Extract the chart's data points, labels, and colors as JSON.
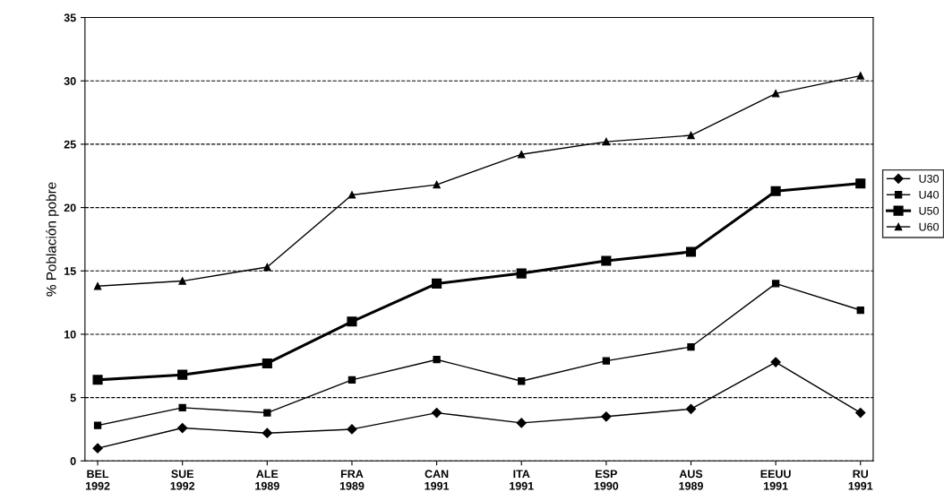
{
  "chart_data": {
    "type": "line",
    "ylabel": "% Población pobre",
    "categories": [
      "BEL\n1992",
      "SUE\n1992",
      "ALE\n1989",
      "FRA\n1989",
      "CAN\n1991",
      "ITA\n1991",
      "ESP\n1990",
      "AUS\n1989",
      "EEUU\n1991",
      "RU\n1991"
    ],
    "series": [
      {
        "name": "U30",
        "color": "#000000",
        "marker": "diamond",
        "values": [
          1.0,
          2.6,
          2.2,
          2.5,
          3.8,
          3.0,
          3.5,
          4.1,
          7.8,
          3.8
        ]
      },
      {
        "name": "U40",
        "color": "#000000",
        "marker": "square",
        "values": [
          2.8,
          4.2,
          3.8,
          6.4,
          8.0,
          6.3,
          7.9,
          9.0,
          14.0,
          11.9
        ]
      },
      {
        "name": "U50",
        "color": "#000000",
        "marker": "square",
        "values": [
          6.4,
          6.8,
          7.7,
          11.0,
          14.0,
          14.8,
          15.8,
          16.5,
          21.3,
          21.9
        ]
      },
      {
        "name": "U60",
        "color": "#000000",
        "marker": "triangle",
        "values": [
          13.8,
          14.2,
          15.3,
          21.0,
          21.8,
          24.2,
          25.2,
          25.7,
          29.0,
          30.4
        ]
      }
    ],
    "ylim": [
      0,
      35
    ],
    "yticks": [
      0,
      5,
      10,
      15,
      20,
      25,
      30,
      35
    ],
    "grid": "y",
    "legend": "right",
    "line_style": "solid"
  }
}
